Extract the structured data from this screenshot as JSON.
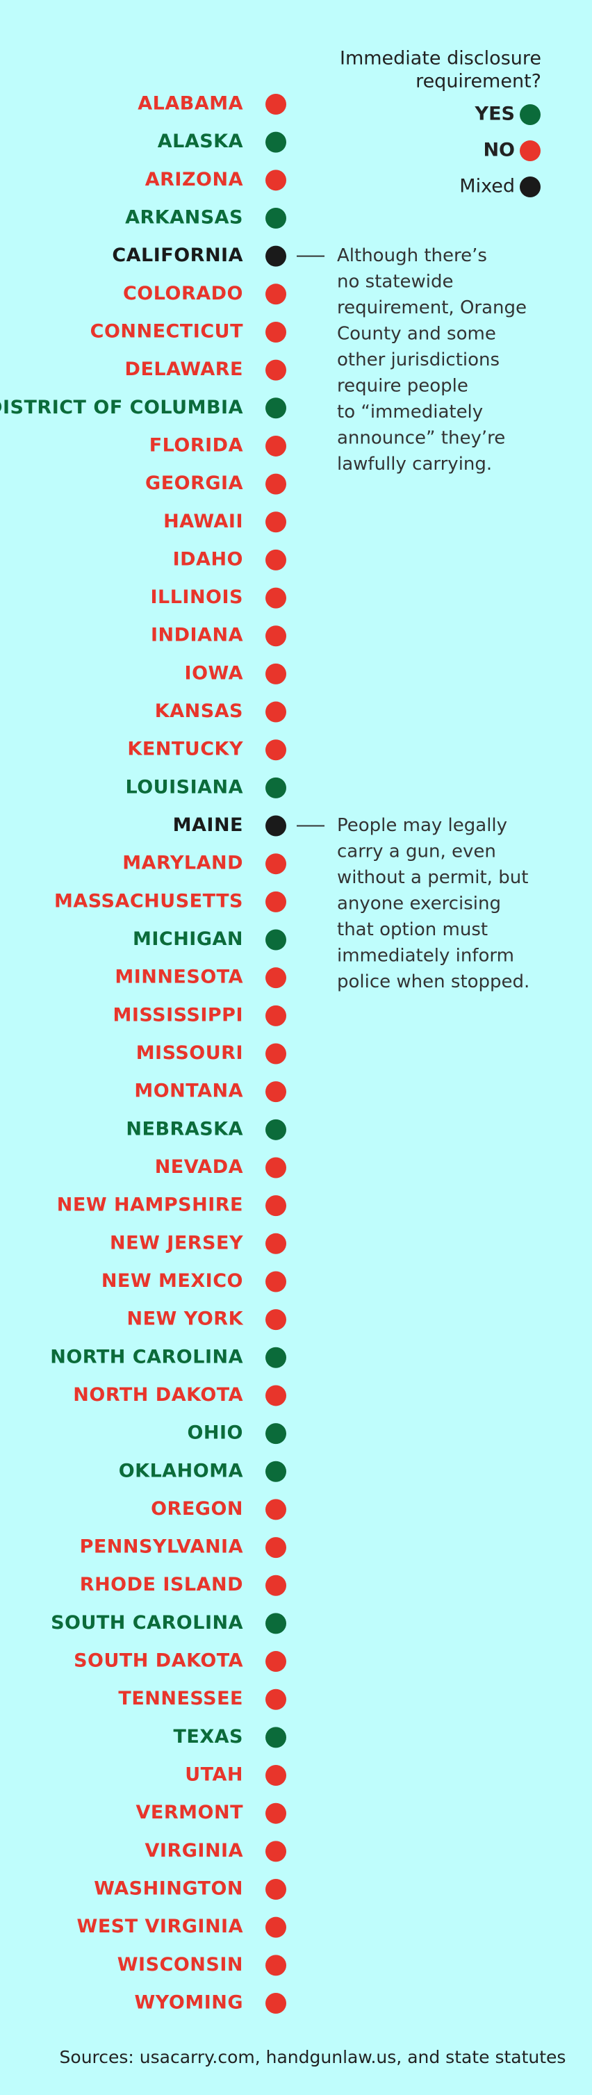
{
  "legend": {
    "title": [
      "Immediate disclosure",
      "requirement?"
    ],
    "items": [
      {
        "label": "YES",
        "color": "#0b6b3a"
      },
      {
        "label": "NO",
        "color": "#e8352b"
      },
      {
        "label": "Mixed",
        "color": "#1a1a1a"
      }
    ]
  },
  "states": [
    {
      "name": "ALABAMA",
      "status": "NO"
    },
    {
      "name": "ALASKA",
      "status": "YES"
    },
    {
      "name": "ARIZONA",
      "status": "NO"
    },
    {
      "name": "ARKANSAS",
      "status": "YES"
    },
    {
      "name": "CALIFORNIA",
      "status": "Mixed",
      "note": [
        "Although there’s",
        "no statewide",
        "requirement, Orange",
        "County and some",
        "other jurisdictions",
        "require people",
        "to “immediately",
        "announce” they’re",
        "lawfully carrying."
      ]
    },
    {
      "name": "COLORADO",
      "status": "NO"
    },
    {
      "name": "CONNECTICUT",
      "status": "NO"
    },
    {
      "name": "DELAWARE",
      "status": "NO"
    },
    {
      "name": "DISTRICT OF COLUMBIA",
      "status": "YES"
    },
    {
      "name": "FLORIDA",
      "status": "NO"
    },
    {
      "name": "GEORGIA",
      "status": "NO"
    },
    {
      "name": "HAWAII",
      "status": "NO"
    },
    {
      "name": "IDAHO",
      "status": "NO"
    },
    {
      "name": "ILLINOIS",
      "status": "NO"
    },
    {
      "name": "INDIANA",
      "status": "NO"
    },
    {
      "name": "IOWA",
      "status": "NO"
    },
    {
      "name": "KANSAS",
      "status": "NO"
    },
    {
      "name": "KENTUCKY",
      "status": "NO"
    },
    {
      "name": "LOUISIANA",
      "status": "YES"
    },
    {
      "name": "MAINE",
      "status": "Mixed",
      "note": [
        "People may legally",
        "carry a gun, even",
        "without a permit, but",
        "anyone exercising",
        "that option must",
        "immediately inform",
        "police when stopped."
      ]
    },
    {
      "name": "MARYLAND",
      "status": "NO"
    },
    {
      "name": "MASSACHUSETTS",
      "status": "NO"
    },
    {
      "name": "MICHIGAN",
      "status": "YES"
    },
    {
      "name": "MINNESOTA",
      "status": "NO"
    },
    {
      "name": "MISSISSIPPI",
      "status": "NO"
    },
    {
      "name": "MISSOURI",
      "status": "NO"
    },
    {
      "name": "MONTANA",
      "status": "NO"
    },
    {
      "name": "NEBRASKA",
      "status": "YES"
    },
    {
      "name": "NEVADA",
      "status": "NO"
    },
    {
      "name": "NEW HAMPSHIRE",
      "status": "NO"
    },
    {
      "name": "NEW JERSEY",
      "status": "NO"
    },
    {
      "name": "NEW MEXICO",
      "status": "NO"
    },
    {
      "name": "NEW YORK",
      "status": "NO"
    },
    {
      "name": "NORTH CAROLINA",
      "status": "YES"
    },
    {
      "name": "NORTH DAKOTA",
      "status": "NO"
    },
    {
      "name": "OHIO",
      "status": "YES"
    },
    {
      "name": "OKLAHOMA",
      "status": "YES"
    },
    {
      "name": "OREGON",
      "status": "NO"
    },
    {
      "name": "PENNSYLVANIA",
      "status": "NO"
    },
    {
      "name": "RHODE ISLAND",
      "status": "NO"
    },
    {
      "name": "SOUTH CAROLINA",
      "status": "YES"
    },
    {
      "name": "SOUTH DAKOTA",
      "status": "NO"
    },
    {
      "name": "TENNESSEE",
      "status": "NO"
    },
    {
      "name": "TEXAS",
      "status": "YES"
    },
    {
      "name": "UTAH",
      "status": "NO"
    },
    {
      "name": "VERMONT",
      "status": "NO"
    },
    {
      "name": "VIRGINIA",
      "status": "NO"
    },
    {
      "name": "WASHINGTON",
      "status": "NO"
    },
    {
      "name": "WEST VIRGINIA",
      "status": "NO"
    },
    {
      "name": "WISCONSIN",
      "status": "NO"
    },
    {
      "name": "WYOMING",
      "status": "NO"
    }
  ],
  "sources": "Sources: usacarry.com, handgunlaw.us, and state statutes"
}
